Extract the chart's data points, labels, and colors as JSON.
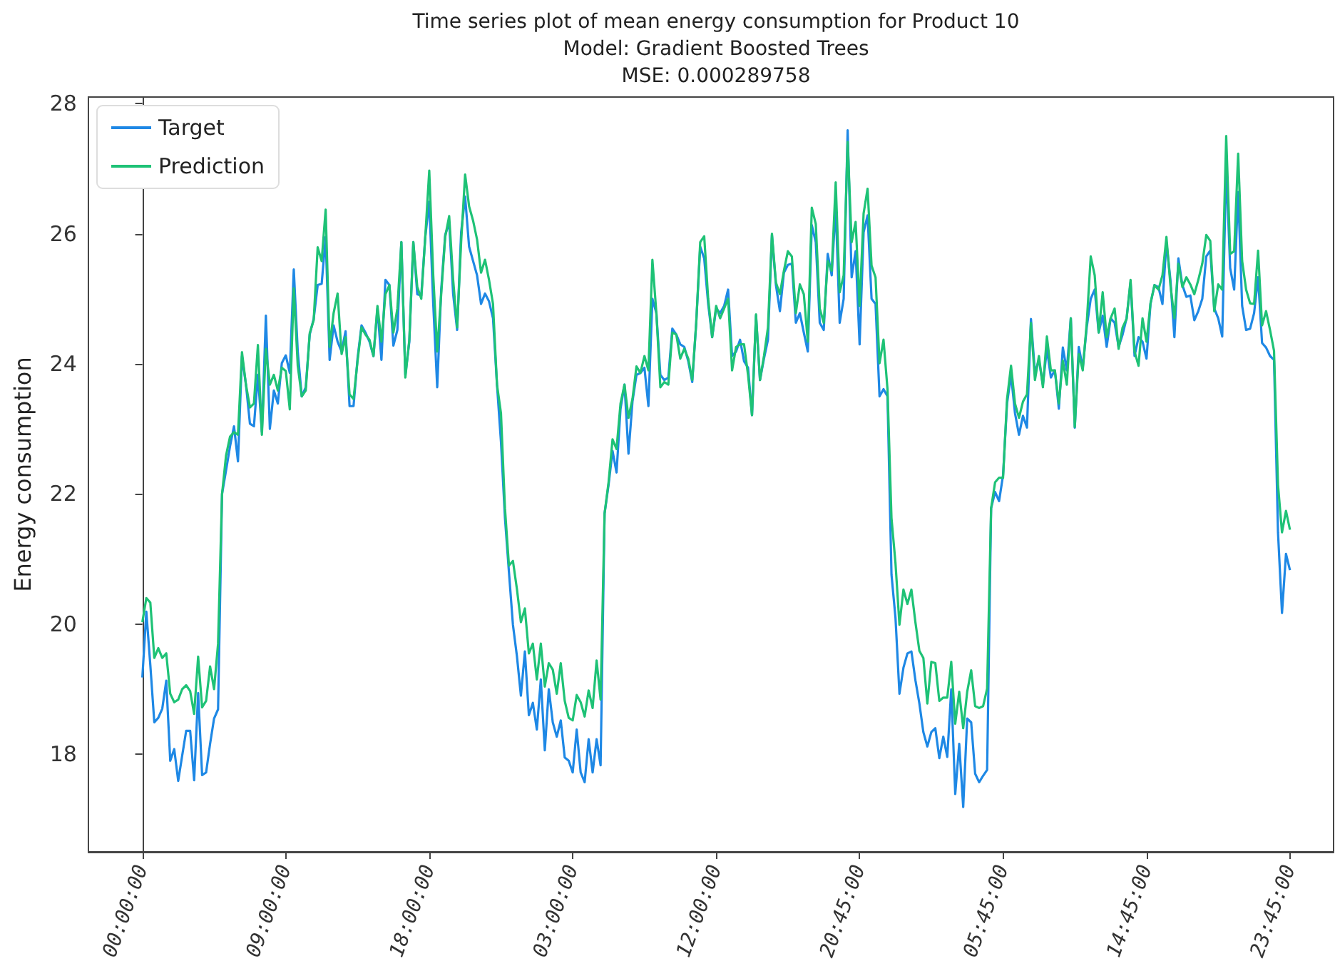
{
  "chart_data": {
    "type": "line",
    "title": "Time series plot of mean energy consumption for Product 10",
    "subtitle": "Model: Gradient Boosted Trees\nMSE: 0.000289758",
    "ylabel": "Energy consumption",
    "categories": [
      "00:00:00",
      null,
      null,
      null,
      null,
      null,
      null,
      null,
      null,
      null,
      null,
      null,
      null,
      null,
      null,
      null,
      null,
      null,
      null,
      null,
      null,
      null,
      null,
      null,
      null,
      null,
      null,
      null,
      null,
      null,
      null,
      null,
      null,
      null,
      null,
      null,
      "09:00:00",
      null,
      null,
      null,
      null,
      null,
      null,
      null,
      null,
      null,
      null,
      null,
      null,
      null,
      null,
      null,
      null,
      null,
      null,
      null,
      null,
      null,
      null,
      null,
      null,
      null,
      null,
      null,
      null,
      null,
      null,
      null,
      null,
      null,
      null,
      null,
      "18:00:00",
      null,
      null,
      null,
      null,
      null,
      null,
      null,
      null,
      null,
      null,
      null,
      null,
      null,
      null,
      null,
      null,
      null,
      null,
      null,
      null,
      null,
      null,
      null,
      null,
      null,
      null,
      null,
      null,
      null,
      null,
      null,
      null,
      null,
      null,
      null,
      "03:00:00",
      null,
      null,
      null,
      null,
      null,
      null,
      null,
      null,
      null,
      null,
      null,
      null,
      null,
      null,
      null,
      null,
      null,
      null,
      null,
      null,
      null,
      null,
      null,
      null,
      null,
      null,
      null,
      null,
      null,
      null,
      null,
      null,
      null,
      null,
      null,
      "12:00:00",
      null,
      null,
      null,
      null,
      null,
      null,
      null,
      null,
      null,
      null,
      null,
      null,
      null,
      null,
      null,
      null,
      null,
      null,
      null,
      null,
      null,
      null,
      null,
      null,
      null,
      null,
      null,
      null,
      null,
      null,
      null,
      null,
      null,
      null,
      null,
      "20:45:00",
      null,
      null,
      null,
      null,
      null,
      null,
      null,
      null,
      null,
      null,
      null,
      null,
      null,
      null,
      null,
      null,
      null,
      null,
      null,
      null,
      null,
      null,
      null,
      null,
      null,
      null,
      null,
      null,
      null,
      null,
      null,
      null,
      null,
      null,
      null,
      "05:45:00",
      null,
      null,
      null,
      null,
      null,
      null,
      null,
      null,
      null,
      null,
      null,
      null,
      null,
      null,
      null,
      null,
      null,
      null,
      null,
      null,
      null,
      null,
      null,
      null,
      null,
      null,
      null,
      null,
      null,
      null,
      null,
      null,
      null,
      null,
      null,
      "14:45:00",
      null,
      null,
      null,
      null,
      null,
      null,
      null,
      null,
      null,
      null,
      null,
      null,
      null,
      null,
      null,
      null,
      null,
      null,
      null,
      null,
      null,
      null,
      null,
      null,
      null,
      null,
      null,
      null,
      null,
      null,
      null,
      null,
      null,
      null,
      null,
      "23:45:00"
    ],
    "series": [
      {
        "name": "Target",
        "color": "#1e88e5",
        "values": [
          19.18,
          20.19,
          19.37,
          18.49,
          18.56,
          18.7,
          19.13,
          17.9,
          18.08,
          17.59,
          17.98,
          18.36,
          18.36,
          17.6,
          18.94,
          17.68,
          17.72,
          18.16,
          18.55,
          18.69,
          22.0,
          22.36,
          22.73,
          23.04,
          22.5,
          24.12,
          23.68,
          23.08,
          23.04,
          23.83,
          22.95,
          24.74,
          23.0,
          23.59,
          23.39,
          24.01,
          24.13,
          23.86,
          25.45,
          24.19,
          23.5,
          23.64,
          24.45,
          24.69,
          25.21,
          25.23,
          25.95,
          24.06,
          24.59,
          24.34,
          24.19,
          24.5,
          23.35,
          23.35,
          24.08,
          24.59,
          24.48,
          24.34,
          24.12,
          24.85,
          24.06,
          25.29,
          25.21,
          24.28,
          24.52,
          25.87,
          23.83,
          24.34,
          25.87,
          25.07,
          25.05,
          25.95,
          26.49,
          24.92,
          23.64,
          25.14,
          25.98,
          26.17,
          25.07,
          24.52,
          26.02,
          26.57,
          25.8,
          25.58,
          25.36,
          24.92,
          25.08,
          24.96,
          24.7,
          23.68,
          22.8,
          21.63,
          20.8,
          19.99,
          19.51,
          18.9,
          19.58,
          18.6,
          18.79,
          18.38,
          19.15,
          18.06,
          19.0,
          18.49,
          18.27,
          18.52,
          17.95,
          17.9,
          17.72,
          18.38,
          17.72,
          17.57,
          18.23,
          17.72,
          18.23,
          17.83,
          21.7,
          22.14,
          22.66,
          22.33,
          23.31,
          23.68,
          22.62,
          23.42,
          23.83,
          23.86,
          23.94,
          23.35,
          25.0,
          24.78,
          23.83,
          23.75,
          23.79,
          24.54,
          24.45,
          24.3,
          24.26,
          24.04,
          23.72,
          24.63,
          25.8,
          25.62,
          24.92,
          24.41,
          24.85,
          24.78,
          24.89,
          25.14,
          24.12,
          24.19,
          24.37,
          24.04,
          23.94,
          23.21,
          24.74,
          23.75,
          24.08,
          24.37,
          25.98,
          25.21,
          24.81,
          25.4,
          25.52,
          25.54,
          24.63,
          24.78,
          24.48,
          24.19,
          26.13,
          25.87,
          24.63,
          24.52,
          25.69,
          25.36,
          26.42,
          24.63,
          25.0,
          27.59,
          25.33,
          25.73,
          24.3,
          26.02,
          26.28,
          25.0,
          24.92,
          23.5,
          23.61,
          23.5,
          20.76,
          20.1,
          18.93,
          19.33,
          19.55,
          19.58,
          19.14,
          18.78,
          18.34,
          18.12,
          18.34,
          18.4,
          17.94,
          18.27,
          17.96,
          19.0,
          17.39,
          18.16,
          17.19,
          18.55,
          18.49,
          17.7,
          17.57,
          17.67,
          17.76,
          21.78,
          22.03,
          21.89,
          22.29,
          23.39,
          23.83,
          23.24,
          22.91,
          23.2,
          23.02,
          24.69,
          23.86,
          24.06,
          23.68,
          24.23,
          23.79,
          23.9,
          23.31,
          24.25,
          23.9,
          24.7,
          23.02,
          24.26,
          23.94,
          24.56,
          25.0,
          25.14,
          24.48,
          24.74,
          24.26,
          24.7,
          24.63,
          24.26,
          24.45,
          24.7,
          25.25,
          24.12,
          24.41,
          24.34,
          24.08,
          24.92,
          25.21,
          25.18,
          24.92,
          25.87,
          25.29,
          24.41,
          25.62,
          25.21,
          25.03,
          25.05,
          24.67,
          24.81,
          25.0,
          25.65,
          25.74,
          24.85,
          24.7,
          24.42,
          27.04,
          25.47,
          25.14,
          26.64,
          24.89,
          24.52,
          24.54,
          24.78,
          25.33,
          24.32,
          24.25,
          24.12,
          24.06,
          21.41,
          20.17,
          21.08,
          20.83
        ]
      },
      {
        "name": "Prediction",
        "color": "#1ec276",
        "values": [
          20.03,
          20.4,
          20.33,
          19.48,
          19.63,
          19.48,
          19.55,
          18.93,
          18.8,
          18.84,
          19.0,
          19.06,
          18.97,
          18.62,
          19.5,
          18.72,
          18.82,
          19.35,
          19.0,
          19.7,
          22.0,
          22.59,
          22.88,
          22.95,
          22.91,
          24.18,
          23.68,
          23.33,
          23.39,
          24.29,
          22.91,
          24.23,
          23.68,
          23.83,
          23.59,
          23.94,
          23.89,
          23.3,
          25.16,
          23.97,
          23.5,
          23.59,
          24.47,
          24.67,
          25.79,
          25.58,
          26.37,
          24.26,
          24.78,
          25.08,
          24.15,
          24.41,
          23.53,
          23.46,
          24.04,
          24.56,
          24.45,
          24.37,
          24.12,
          24.89,
          24.34,
          25.07,
          25.21,
          24.48,
          24.85,
          25.87,
          23.79,
          24.37,
          25.87,
          25.18,
          25.0,
          25.95,
          26.97,
          25.36,
          24.19,
          25.07,
          25.95,
          26.27,
          25.29,
          24.56,
          25.87,
          26.91,
          26.42,
          26.2,
          25.91,
          25.4,
          25.6,
          25.29,
          24.92,
          23.68,
          23.24,
          21.78,
          20.9,
          20.97,
          20.54,
          20.03,
          20.24,
          19.55,
          19.7,
          19.15,
          19.7,
          19.04,
          19.4,
          19.3,
          18.93,
          19.4,
          18.82,
          18.56,
          18.52,
          18.91,
          18.8,
          18.58,
          18.98,
          18.71,
          19.44,
          18.84,
          21.7,
          22.18,
          22.84,
          22.69,
          23.39,
          23.68,
          23.17,
          23.46,
          23.96,
          23.86,
          24.12,
          23.9,
          25.6,
          24.78,
          23.64,
          23.72,
          23.68,
          24.48,
          24.45,
          24.08,
          24.23,
          24.08,
          23.75,
          24.63,
          25.87,
          25.96,
          25.0,
          24.41,
          24.89,
          24.7,
          24.85,
          25.0,
          23.9,
          24.26,
          24.3,
          24.3,
          23.83,
          23.21,
          24.76,
          23.75,
          24.12,
          24.56,
          26.0,
          25.25,
          25.07,
          25.43,
          25.73,
          25.65,
          24.78,
          25.22,
          25.07,
          24.34,
          26.4,
          26.15,
          24.85,
          24.63,
          25.58,
          25.43,
          26.79,
          25.1,
          25.36,
          27.41,
          25.87,
          26.18,
          24.89,
          26.31,
          26.69,
          25.51,
          25.33,
          24.01,
          24.37,
          23.61,
          21.63,
          20.94,
          19.99,
          20.53,
          20.31,
          20.53,
          20.03,
          19.59,
          19.48,
          18.78,
          19.42,
          19.4,
          18.82,
          18.87,
          18.87,
          19.42,
          18.47,
          18.96,
          18.4,
          18.96,
          19.29,
          18.74,
          18.71,
          18.74,
          19.01,
          21.78,
          22.18,
          22.25,
          22.25,
          23.46,
          23.97,
          23.39,
          23.17,
          23.42,
          23.53,
          24.63,
          23.75,
          24.12,
          23.64,
          24.42,
          23.9,
          23.9,
          23.39,
          24.05,
          23.68,
          24.7,
          23.03,
          24.15,
          23.9,
          24.63,
          25.65,
          25.36,
          24.48,
          25.1,
          24.41,
          24.7,
          24.85,
          24.23,
          24.56,
          24.69,
          25.29,
          24.19,
          23.97,
          24.7,
          24.34,
          24.93,
          25.21,
          25.14,
          25.36,
          25.95,
          25.21,
          24.7,
          25.54,
          25.18,
          25.33,
          25.22,
          25.07,
          25.29,
          25.54,
          25.98,
          25.89,
          24.81,
          25.22,
          25.14,
          27.5,
          25.69,
          25.73,
          27.23,
          25.58,
          25.14,
          24.93,
          24.92,
          25.74,
          24.59,
          24.81,
          24.52,
          24.2,
          22.14,
          21.41,
          21.74,
          21.45
        ]
      }
    ],
    "ylim": [
      16.5,
      28.1
    ],
    "yticks": [
      18,
      20,
      22,
      24,
      26,
      28
    ],
    "legend": "top left",
    "grid": false,
    "marker": "none",
    "line_style": "solid"
  }
}
